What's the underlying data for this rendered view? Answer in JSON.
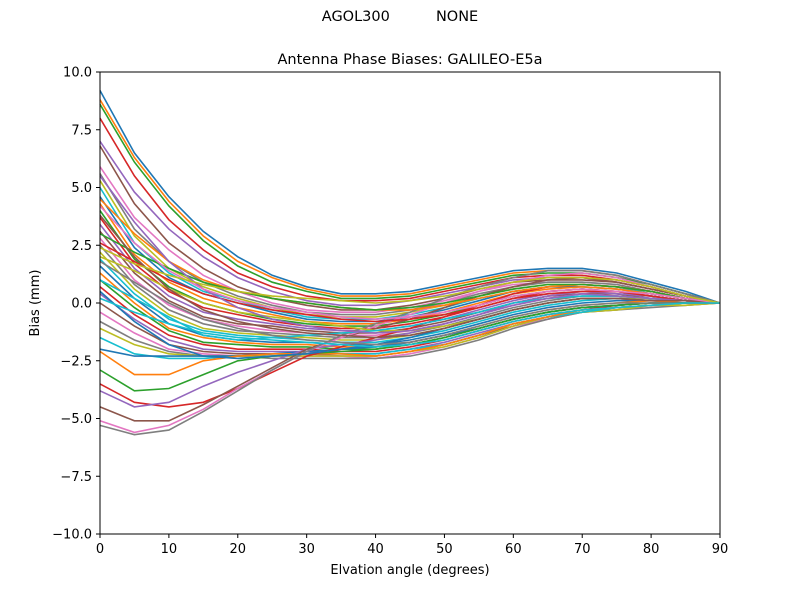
{
  "suptitle": "AGOL300          NONE",
  "chart_data": {
    "type": "line",
    "title": "Antenna Phase Biases: GALILEO-E5a",
    "xlabel": "Elvation angle (degrees)",
    "ylabel": "Bias (mm)",
    "xlim": [
      0,
      90
    ],
    "ylim": [
      -10,
      10
    ],
    "xticks": [
      0,
      10,
      20,
      30,
      40,
      50,
      60,
      70,
      80,
      90
    ],
    "yticks": [
      -10.0,
      -7.5,
      -5.0,
      -2.5,
      0.0,
      2.5,
      5.0,
      7.5,
      10.0
    ],
    "ytick_labels": [
      "−10.0",
      "−7.5",
      "−5.0",
      "−2.5",
      "0.0",
      "2.5",
      "5.0",
      "7.5",
      "10.0"
    ],
    "grid": false,
    "legend": "none",
    "palette": [
      "#1f77b4",
      "#ff7f0e",
      "#2ca02c",
      "#d62728",
      "#9467bd",
      "#8c564b",
      "#e377c2",
      "#7f7f7f",
      "#bcbd22",
      "#17becf"
    ],
    "x": [
      0,
      5,
      10,
      15,
      20,
      25,
      30,
      35,
      40,
      45,
      50,
      55,
      60,
      65,
      70,
      75,
      80,
      85,
      90
    ],
    "series": [
      {
        "values": [
          9.2,
          6.5,
          4.6,
          3.1,
          2.0,
          1.2,
          0.7,
          0.4,
          0.4,
          0.5,
          0.8,
          1.1,
          1.4,
          1.5,
          1.5,
          1.3,
          0.9,
          0.5,
          0.0
        ]
      },
      {
        "values": [
          8.8,
          6.3,
          4.4,
          2.9,
          1.8,
          1.1,
          0.6,
          0.3,
          0.3,
          0.4,
          0.7,
          1.0,
          1.3,
          1.4,
          1.4,
          1.2,
          0.8,
          0.4,
          0.0
        ]
      },
      {
        "values": [
          8.6,
          6.1,
          4.2,
          2.7,
          1.6,
          0.9,
          0.5,
          0.2,
          0.2,
          0.3,
          0.6,
          0.9,
          1.2,
          1.3,
          1.3,
          1.1,
          0.8,
          0.4,
          0.0
        ]
      },
      {
        "values": [
          8.0,
          5.5,
          3.6,
          2.3,
          1.3,
          0.7,
          0.3,
          0.1,
          0.1,
          0.2,
          0.5,
          0.8,
          1.1,
          1.2,
          1.2,
          1.0,
          0.7,
          0.3,
          0.0
        ]
      },
      {
        "values": [
          7.0,
          4.8,
          3.2,
          2.0,
          1.1,
          0.5,
          0.1,
          -0.1,
          -0.1,
          0.1,
          0.4,
          0.7,
          1.0,
          1.1,
          1.1,
          0.9,
          0.6,
          0.3,
          0.0
        ]
      },
      {
        "values": [
          6.8,
          4.3,
          2.6,
          1.5,
          0.7,
          0.2,
          -0.1,
          -0.3,
          -0.3,
          -0.1,
          0.2,
          0.6,
          0.9,
          1.0,
          1.0,
          0.9,
          0.6,
          0.3,
          0.0
        ]
      },
      {
        "values": [
          5.9,
          3.7,
          2.3,
          1.2,
          0.5,
          0.0,
          -0.3,
          -0.4,
          -0.4,
          -0.2,
          0.1,
          0.5,
          0.8,
          0.9,
          0.9,
          0.8,
          0.5,
          0.2,
          0.0
        ]
      },
      {
        "values": [
          5.6,
          3.2,
          1.8,
          0.9,
          0.3,
          -0.1,
          -0.4,
          -0.5,
          -0.5,
          -0.3,
          0.0,
          0.4,
          0.7,
          0.9,
          0.9,
          0.8,
          0.5,
          0.2,
          0.0
        ]
      },
      {
        "values": [
          5.3,
          2.9,
          1.5,
          0.7,
          0.2,
          -0.2,
          -0.5,
          -0.6,
          -0.6,
          -0.4,
          -0.1,
          0.3,
          0.6,
          0.8,
          0.8,
          0.7,
          0.5,
          0.2,
          0.0
        ]
      },
      {
        "values": [
          5.0,
          2.6,
          1.3,
          0.5,
          0.1,
          -0.3,
          -0.6,
          -0.7,
          -0.7,
          -0.5,
          -0.2,
          0.2,
          0.5,
          0.7,
          0.8,
          0.7,
          0.4,
          0.2,
          0.0
        ]
      },
      {
        "values": [
          4.6,
          2.4,
          1.1,
          0.4,
          0.0,
          -0.4,
          -0.7,
          -0.8,
          -0.8,
          -0.6,
          -0.3,
          0.1,
          0.5,
          0.7,
          0.7,
          0.6,
          0.4,
          0.2,
          0.0
        ]
      },
      {
        "values": [
          4.3,
          2.1,
          0.9,
          0.2,
          -0.2,
          -0.5,
          -0.8,
          -0.9,
          -0.9,
          -0.7,
          -0.4,
          0.0,
          0.4,
          0.6,
          0.7,
          0.6,
          0.4,
          0.2,
          0.0
        ]
      },
      {
        "values": [
          4.0,
          1.9,
          0.7,
          0.0,
          -0.4,
          -0.7,
          -0.9,
          -1.0,
          -1.0,
          -0.8,
          -0.5,
          -0.1,
          0.3,
          0.5,
          0.6,
          0.5,
          0.3,
          0.1,
          0.0
        ]
      },
      {
        "values": [
          3.7,
          1.7,
          0.5,
          -0.2,
          -0.5,
          -0.8,
          -1.0,
          -1.1,
          -1.1,
          -0.9,
          -0.6,
          -0.2,
          0.2,
          0.5,
          0.6,
          0.5,
          0.3,
          0.1,
          0.0
        ]
      },
      {
        "values": [
          3.4,
          1.5,
          0.3,
          -0.4,
          -0.7,
          -0.9,
          -1.1,
          -1.2,
          -1.2,
          -1.0,
          -0.7,
          -0.3,
          0.1,
          0.4,
          0.5,
          0.4,
          0.3,
          0.1,
          0.0
        ]
      },
      {
        "values": [
          3.1,
          1.3,
          0.1,
          -0.6,
          -0.9,
          -1.0,
          -1.2,
          -1.3,
          -1.3,
          -1.1,
          -0.8,
          -0.4,
          0.0,
          0.3,
          0.4,
          0.4,
          0.2,
          0.1,
          0.0
        ]
      },
      {
        "values": [
          2.8,
          1.0,
          -0.1,
          -0.7,
          -1.0,
          -1.2,
          -1.3,
          -1.4,
          -1.4,
          -1.2,
          -0.9,
          -0.5,
          -0.1,
          0.2,
          0.4,
          0.3,
          0.2,
          0.1,
          0.0
        ]
      },
      {
        "values": [
          2.5,
          0.8,
          -0.3,
          -0.9,
          -1.2,
          -1.3,
          -1.4,
          -1.5,
          -1.5,
          -1.3,
          -1.0,
          -0.6,
          -0.2,
          0.1,
          0.3,
          0.3,
          0.2,
          0.1,
          0.0
        ]
      },
      {
        "values": [
          2.2,
          0.6,
          -0.5,
          -1.1,
          -1.3,
          -1.4,
          -1.5,
          -1.6,
          -1.6,
          -1.4,
          -1.1,
          -0.7,
          -0.3,
          0.0,
          0.2,
          0.2,
          0.2,
          0.1,
          0.0
        ]
      },
      {
        "values": [
          1.9,
          0.4,
          -0.7,
          -1.2,
          -1.4,
          -1.5,
          -1.6,
          -1.7,
          -1.7,
          -1.5,
          -1.2,
          -0.8,
          -0.4,
          -0.1,
          0.1,
          0.2,
          0.1,
          0.1,
          0.0
        ]
      },
      {
        "values": [
          1.6,
          0.2,
          -0.9,
          -1.4,
          -1.6,
          -1.7,
          -1.7,
          -1.8,
          -1.8,
          -1.6,
          -1.3,
          -0.9,
          -0.5,
          -0.2,
          0.0,
          0.1,
          0.1,
          0.0,
          0.0
        ]
      },
      {
        "values": [
          1.3,
          0.0,
          -1.1,
          -1.5,
          -1.7,
          -1.8,
          -1.8,
          -1.9,
          -1.9,
          -1.7,
          -1.4,
          -1.0,
          -0.6,
          -0.3,
          -0.1,
          0.0,
          0.1,
          0.0,
          0.0
        ]
      },
      {
        "values": [
          1.0,
          -0.2,
          -1.2,
          -1.7,
          -1.8,
          -1.9,
          -1.9,
          -2.0,
          -2.0,
          -1.8,
          -1.5,
          -1.1,
          -0.7,
          -0.4,
          -0.2,
          -0.1,
          0.0,
          0.0,
          0.0
        ]
      },
      {
        "values": [
          0.7,
          -0.5,
          -1.4,
          -1.8,
          -2.0,
          -2.0,
          -2.0,
          -2.1,
          -2.1,
          -1.9,
          -1.6,
          -1.2,
          -0.8,
          -0.5,
          -0.3,
          -0.1,
          0.0,
          0.0,
          0.0
        ]
      },
      {
        "values": [
          0.4,
          -0.7,
          -1.6,
          -2.0,
          -2.1,
          -2.1,
          -2.1,
          -2.2,
          -2.2,
          -2.0,
          -1.7,
          -1.3,
          -0.9,
          -0.6,
          -0.3,
          -0.2,
          -0.1,
          0.0,
          0.0
        ]
      },
      {
        "values": [
          0.0,
          -1.0,
          -1.8,
          -2.1,
          -2.2,
          -2.2,
          -2.2,
          -2.3,
          -2.3,
          -2.1,
          -1.8,
          -1.4,
          -1.0,
          -0.6,
          -0.4,
          -0.2,
          -0.1,
          0.0,
          0.0
        ]
      },
      {
        "values": [
          -0.4,
          -1.3,
          -2.0,
          -2.2,
          -2.3,
          -2.3,
          -2.3,
          -2.3,
          -2.4,
          -2.2,
          -1.9,
          -1.5,
          -1.0,
          -0.7,
          -0.4,
          -0.3,
          -0.1,
          -0.1,
          0.0
        ]
      },
      {
        "values": [
          -0.8,
          -1.6,
          -2.1,
          -2.3,
          -2.3,
          -2.4,
          -2.4,
          -2.4,
          -2.4,
          -2.3,
          -2.0,
          -1.6,
          -1.1,
          -0.7,
          -0.4,
          -0.3,
          -0.2,
          -0.1,
          0.0
        ]
      },
      {
        "values": [
          -1.1,
          -1.8,
          -2.2,
          -2.3,
          -2.3,
          -2.3,
          -2.3,
          -2.3,
          -2.3,
          -2.1,
          -1.9,
          -1.5,
          -1.0,
          -0.6,
          -0.4,
          -0.3,
          -0.1,
          -0.1,
          0.0
        ]
      },
      {
        "values": [
          -1.5,
          -2.2,
          -2.4,
          -2.4,
          -2.3,
          -2.2,
          -2.2,
          -2.2,
          -2.2,
          -2.0,
          -1.8,
          -1.4,
          -0.9,
          -0.6,
          -0.4,
          -0.2,
          -0.1,
          0.0,
          0.0
        ]
      },
      {
        "values": [
          -2.0,
          -2.3,
          -2.3,
          -2.3,
          -2.3,
          -2.2,
          -2.1,
          -2.0,
          -1.9,
          -1.7,
          -1.4,
          -1.1,
          -0.7,
          -0.4,
          -0.2,
          -0.1,
          0.0,
          0.0,
          0.0
        ]
      },
      {
        "values": [
          -2.1,
          -3.1,
          -3.1,
          -2.5,
          -2.3,
          -2.2,
          -2.2,
          -2.2,
          -2.3,
          -2.1,
          -1.8,
          -1.4,
          -0.9,
          -0.6,
          -0.3,
          -0.2,
          -0.1,
          0.0,
          0.0
        ]
      },
      {
        "values": [
          -2.9,
          -3.8,
          -3.7,
          -3.1,
          -2.5,
          -2.3,
          -2.2,
          -2.1,
          -2.0,
          -1.8,
          -1.5,
          -1.1,
          -0.7,
          -0.4,
          -0.2,
          -0.1,
          0.0,
          0.0,
          0.0
        ]
      },
      {
        "values": [
          -3.5,
          -4.3,
          -4.5,
          -4.3,
          -3.7,
          -3.0,
          -2.3,
          -1.9,
          -1.5,
          -1.1,
          -0.6,
          -0.1,
          0.4,
          0.7,
          0.8,
          0.7,
          0.5,
          0.2,
          0.0
        ]
      },
      {
        "values": [
          -3.8,
          -4.5,
          -4.3,
          -3.6,
          -3.0,
          -2.5,
          -2.0,
          -1.8,
          -1.6,
          -1.3,
          -0.9,
          -0.5,
          0.0,
          0.3,
          0.5,
          0.4,
          0.3,
          0.1,
          0.0
        ]
      },
      {
        "values": [
          -4.5,
          -5.1,
          -5.1,
          -4.4,
          -3.6,
          -2.8,
          -2.0,
          -1.5,
          -1.1,
          -0.7,
          -0.2,
          0.3,
          0.7,
          1.0,
          1.1,
          0.9,
          0.6,
          0.3,
          0.0
        ]
      },
      {
        "values": [
          -5.1,
          -5.6,
          -5.3,
          -4.6,
          -3.7,
          -2.9,
          -2.1,
          -1.5,
          -1.0,
          -0.5,
          0.0,
          0.5,
          0.9,
          1.2,
          1.3,
          1.1,
          0.7,
          0.3,
          0.0
        ]
      },
      {
        "values": [
          -5.3,
          -5.7,
          -5.5,
          -4.7,
          -3.8,
          -2.9,
          -2.1,
          -1.4,
          -0.9,
          -0.4,
          0.2,
          0.7,
          1.1,
          1.4,
          1.4,
          1.2,
          0.8,
          0.4,
          0.0
        ]
      },
      {
        "values": [
          2.0,
          1.4,
          0.6,
          0.0,
          -0.4,
          -0.6,
          -0.8,
          -1.0,
          -1.2,
          -1.2,
          -1.0,
          -0.7,
          -0.3,
          0.0,
          0.2,
          0.2,
          0.1,
          0.1,
          0.0
        ]
      },
      {
        "values": [
          1.0,
          0.2,
          -0.6,
          -1.4,
          -1.6,
          -1.5,
          -1.4,
          -1.3,
          -1.2,
          -1.0,
          -0.7,
          -0.4,
          0.0,
          0.2,
          0.3,
          0.3,
          0.2,
          0.1,
          0.0
        ]
      },
      {
        "values": [
          0.5,
          -0.8,
          -1.8,
          -2.3,
          -2.4,
          -2.3,
          -2.2,
          -2.0,
          -1.8,
          -1.5,
          -1.1,
          -0.7,
          -0.3,
          0.0,
          0.2,
          0.2,
          0.1,
          0.1,
          0.0
        ]
      },
      {
        "values": [
          4.5,
          3.0,
          1.8,
          1.0,
          0.5,
          0.2,
          0.0,
          -0.2,
          -0.3,
          -0.3,
          -0.1,
          0.2,
          0.5,
          0.7,
          0.8,
          0.7,
          0.5,
          0.2,
          0.0
        ]
      },
      {
        "values": [
          3.0,
          2.2,
          1.5,
          0.9,
          0.5,
          0.2,
          0.0,
          -0.2,
          -0.3,
          -0.2,
          0.0,
          0.3,
          0.6,
          0.8,
          0.8,
          0.7,
          0.5,
          0.2,
          0.0
        ]
      },
      {
        "values": [
          2.6,
          1.8,
          1.0,
          0.4,
          0.0,
          -0.3,
          -0.5,
          -0.7,
          -0.8,
          -0.7,
          -0.5,
          -0.2,
          0.2,
          0.4,
          0.5,
          0.5,
          0.3,
          0.1,
          0.0
        ]
      },
      {
        "values": [
          5.5,
          3.5,
          1.8,
          0.6,
          -0.2,
          -0.7,
          -1.0,
          -1.2,
          -1.3,
          -1.2,
          -0.9,
          -0.5,
          -0.1,
          0.2,
          0.4,
          0.3,
          0.2,
          0.1,
          0.0
        ]
      },
      {
        "values": [
          3.8,
          2.0,
          0.6,
          -0.3,
          -0.8,
          -1.1,
          -1.3,
          -1.4,
          -1.5,
          -1.4,
          -1.1,
          -0.7,
          -0.3,
          0.0,
          0.2,
          0.2,
          0.1,
          0.1,
          0.0
        ]
      },
      {
        "values": [
          4.2,
          2.6,
          1.4,
          0.6,
          0.1,
          -0.2,
          -0.4,
          -0.6,
          -0.7,
          -0.6,
          -0.4,
          -0.1,
          0.3,
          0.5,
          0.6,
          0.5,
          0.4,
          0.2,
          0.0
        ]
      },
      {
        "values": [
          1.8,
          0.9,
          0.0,
          -0.7,
          -1.1,
          -1.4,
          -1.6,
          -1.7,
          -1.8,
          -1.7,
          -1.4,
          -1.0,
          -0.6,
          -0.3,
          -0.1,
          0.0,
          0.0,
          0.0,
          0.0
        ]
      },
      {
        "values": [
          2.4,
          1.7,
          1.2,
          0.8,
          0.5,
          0.3,
          0.2,
          0.1,
          0.0,
          0.1,
          0.3,
          0.6,
          0.9,
          1.1,
          1.1,
          1.0,
          0.7,
          0.3,
          0.0
        ]
      },
      {
        "values": [
          0.2,
          -0.4,
          -0.9,
          -1.3,
          -1.5,
          -1.6,
          -1.7,
          -1.8,
          -1.9,
          -1.8,
          -1.6,
          -1.2,
          -0.8,
          -0.5,
          -0.3,
          -0.2,
          -0.1,
          0.0,
          0.0
        ]
      }
    ]
  }
}
